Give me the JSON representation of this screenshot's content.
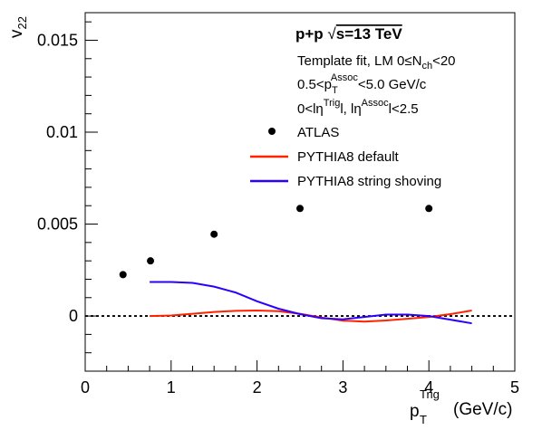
{
  "chart_data": {
    "type": "scatter",
    "axes": {
      "x": {
        "label_main": "p",
        "label_sub": "T",
        "label_sup": "Trig",
        "label_unit": "(GeV/c)",
        "range": [
          0,
          5
        ],
        "ticks": [
          "0",
          "1",
          "2",
          "3",
          "4",
          "5"
        ],
        "tick_values": [
          0,
          1,
          2,
          3,
          4,
          5
        ]
      },
      "y": {
        "label_main": "v",
        "label_sub": "22",
        "range": [
          -0.003,
          0.0165
        ],
        "ticks": [
          "0",
          "0.005",
          "0.01",
          "0.015"
        ],
        "tick_values": [
          0,
          0.005,
          0.01,
          0.015
        ]
      }
    },
    "annotations": {
      "title": {
        "pre": "p+p  ",
        "sqrt": "√",
        "post": "s=13 TeV"
      },
      "line1": "Template fit, LM 0≤N",
      "line1_sub": "ch",
      "line1_post": "<20",
      "line2_pre": "0.5<p",
      "line2_sub": "T",
      "line2_sup": "Assoc",
      "line2_post": "<5.0 GeV/c",
      "line3_a": "0<lη",
      "line3_sup1": "Trig",
      "line3_b": "l, lη",
      "line3_sup2": "Assoc",
      "line3_c": "l<2.5"
    },
    "legend": {
      "placement": "top-right",
      "entries": [
        {
          "label": "ATLAS",
          "kind": "marker",
          "color": "#000000"
        },
        {
          "label": "PYTHIA8 default",
          "kind": "line",
          "color": "#ff2200"
        },
        {
          "label": "PYTHIA8 string shoving",
          "kind": "line",
          "color": "#2a00ff"
        }
      ]
    },
    "zero_line": {
      "style": "dotted",
      "value": 0
    },
    "series": [
      {
        "name": "ATLAS",
        "kind": "points",
        "color": "#000000",
        "x": [
          0.44,
          0.76,
          1.5,
          2.5,
          4.0
        ],
        "y": [
          0.00225,
          0.003,
          0.00445,
          0.00585,
          0.00585
        ]
      },
      {
        "name": "PYTHIA8 default",
        "kind": "line",
        "color": "#ff2200",
        "x": [
          0.75,
          1.0,
          1.25,
          1.5,
          1.75,
          2.0,
          2.25,
          2.5,
          2.75,
          3.0,
          3.25,
          3.5,
          3.75,
          4.0,
          4.25,
          4.5
        ],
        "y": [
          0.0,
          3e-05,
          0.00012,
          0.00022,
          0.00028,
          0.0003,
          0.00026,
          0.00012,
          -8e-05,
          -0.00025,
          -0.0003,
          -0.00024,
          -0.00015,
          -5e-05,
          0.0001,
          0.0003
        ]
      },
      {
        "name": "PYTHIA8 string shoving",
        "kind": "line",
        "color": "#2a00ff",
        "x": [
          0.75,
          1.0,
          1.25,
          1.5,
          1.75,
          2.0,
          2.25,
          2.5,
          2.75,
          3.0,
          3.25,
          3.5,
          3.75,
          4.0,
          4.25,
          4.5
        ],
        "y": [
          0.00185,
          0.00185,
          0.0018,
          0.0016,
          0.00128,
          0.0008,
          0.0004,
          0.0001,
          -0.00012,
          -0.00018,
          -5e-05,
          8e-05,
          8e-05,
          0.0,
          -0.0002,
          -0.0004
        ]
      }
    ]
  }
}
